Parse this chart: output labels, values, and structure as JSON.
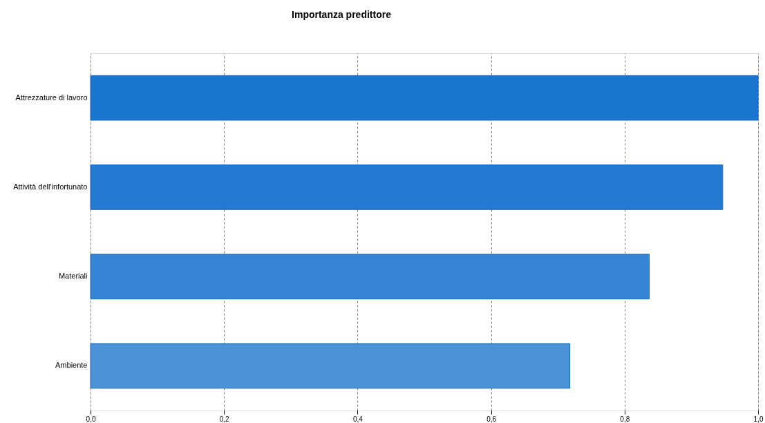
{
  "chart_data": {
    "type": "bar",
    "orientation": "horizontal",
    "title": "Importanza predittore",
    "categories": [
      "Attrezzature di lavoro",
      "Attività dell'infortunato",
      "Materiali",
      "Ambiente"
    ],
    "values": [
      1.0,
      0.947,
      0.837,
      0.718
    ],
    "colors": [
      "#1a75cf",
      "#2479d1",
      "#3585d4",
      "#4a91d6"
    ],
    "xlim": [
      0,
      1
    ],
    "xticks": [
      {
        "value": 0,
        "label": "0,0"
      },
      {
        "value": 0.2,
        "label": "0,2"
      },
      {
        "value": 0.4,
        "label": "0,4"
      },
      {
        "value": 0.6,
        "label": "0,6"
      },
      {
        "value": 0.8,
        "label": "0,8"
      },
      {
        "value": 1.0,
        "label": "1,0"
      }
    ],
    "grid": "x"
  }
}
